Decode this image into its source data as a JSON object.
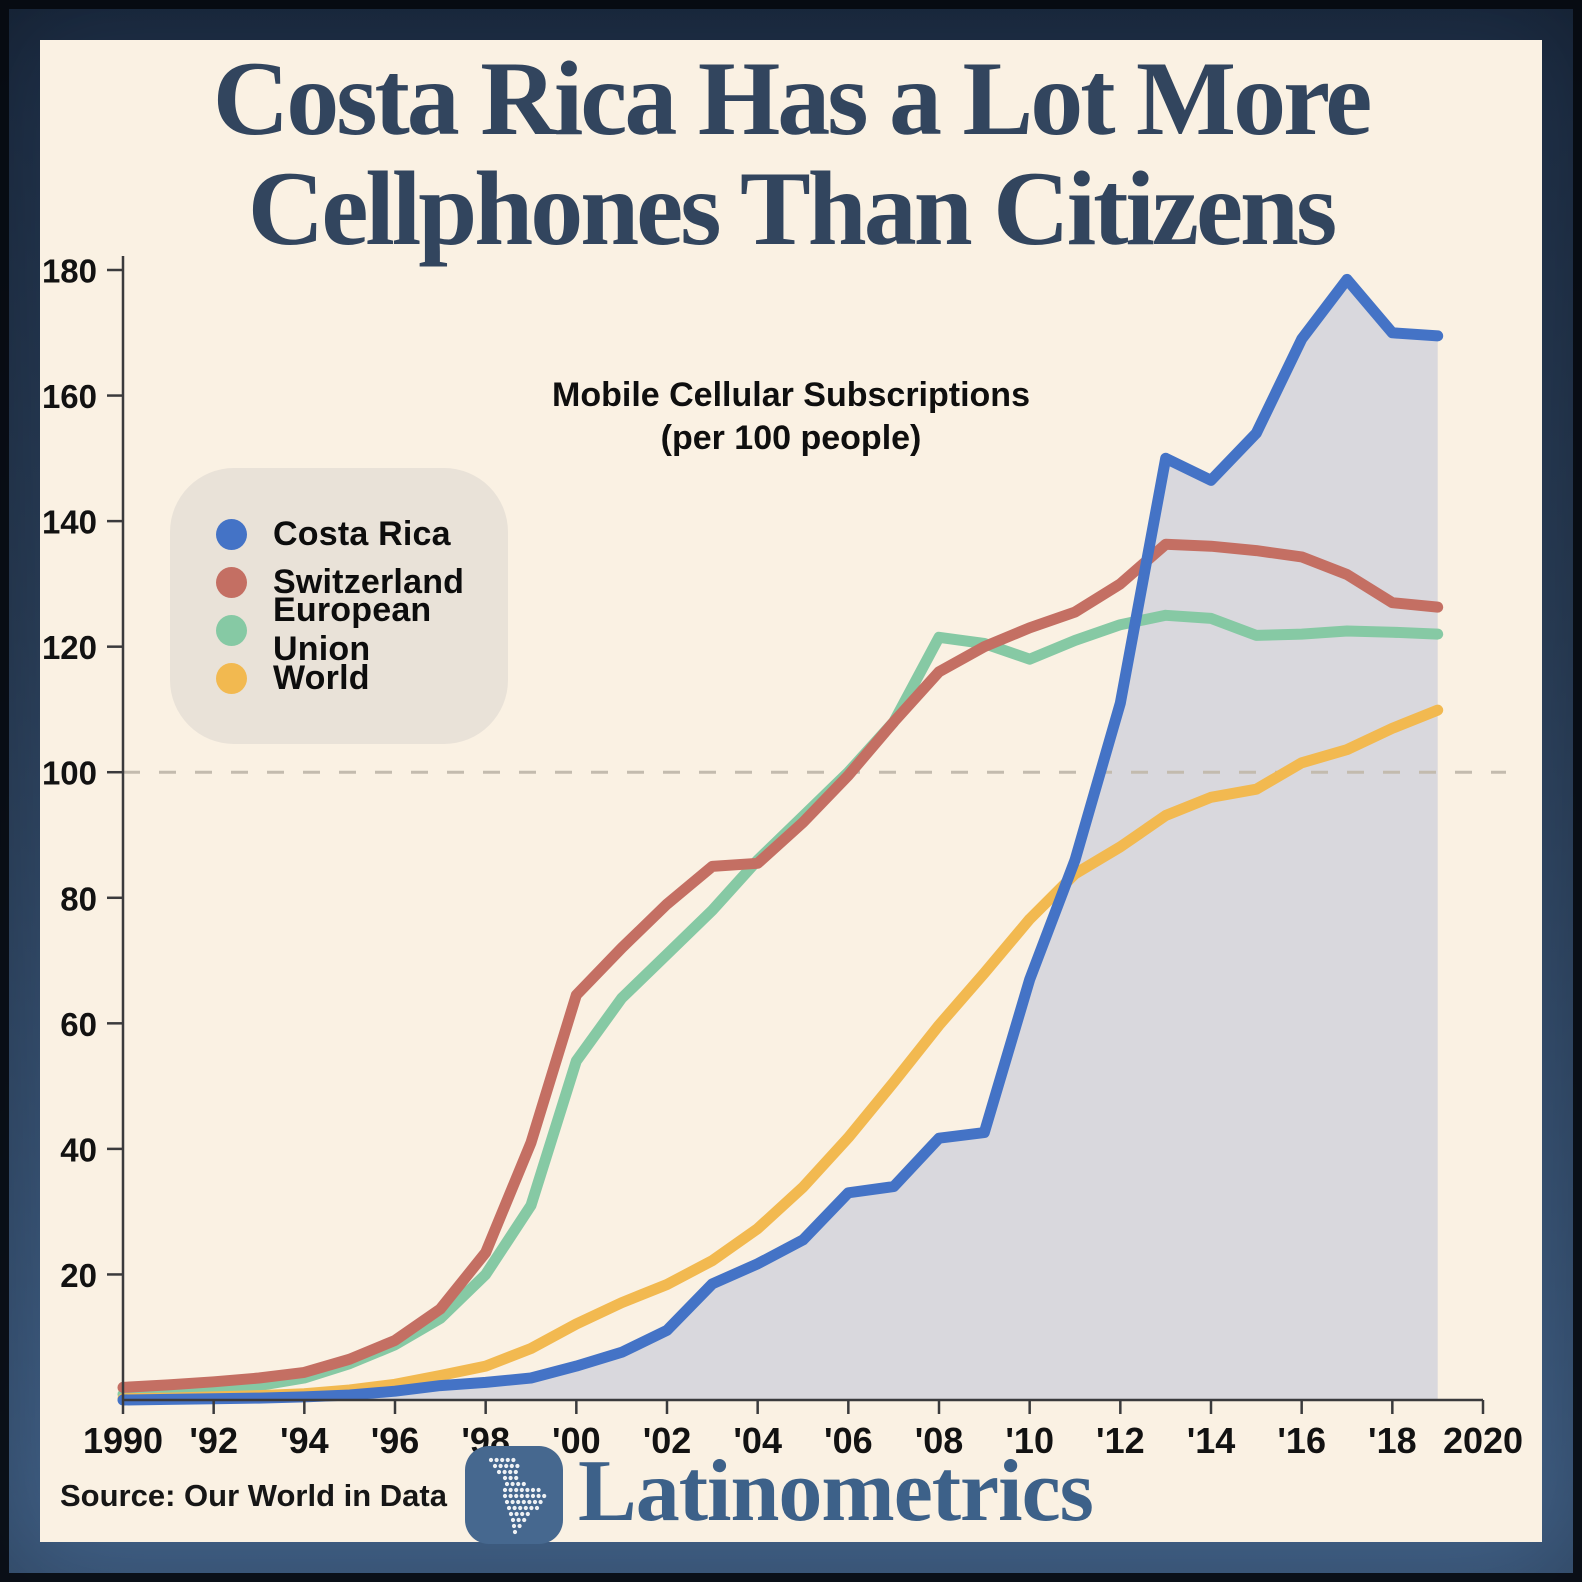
{
  "title": {
    "line1": "Costa Rica Has a Lot More",
    "line2": "Cellphones Than Citizens"
  },
  "subtitle": {
    "line1": "Mobile Cellular Subscriptions",
    "line2": "(per 100 people)"
  },
  "legend": {
    "items": [
      {
        "label": "Costa Rica",
        "color": "#4473c6"
      },
      {
        "label": "Switzerland",
        "color": "#c46f63"
      },
      {
        "label": "European Union",
        "color": "#86c9a4"
      },
      {
        "label": "World",
        "color": "#f2b950"
      }
    ]
  },
  "footer": {
    "source": "Source: Our World in Data",
    "brand": "Latinometrics"
  },
  "colors": {
    "panel_background": "#faf1e3",
    "frame_top": "#1d2e46",
    "frame_bottom": "#44658d",
    "title_text": "#32455e",
    "area_fill": "#d9d8dd",
    "axis": "#3a3a3c",
    "tick_text": "#121212",
    "reference_dash": "#c3bbae",
    "legend_background": "#e9e2d8",
    "logo_background": "#46688f",
    "brand_text": "#3d6189"
  },
  "chart_data": {
    "type": "line",
    "title": "Mobile Cellular Subscriptions (per 100 people)",
    "xlabel": "",
    "ylabel": "",
    "xlim": [
      1990,
      2020
    ],
    "ylim": [
      0,
      180
    ],
    "grid": "off",
    "legend_position": "upper-left",
    "reference_line_y": 100,
    "area_under_series": "Costa Rica",
    "x_years": [
      1990,
      1991,
      1992,
      1993,
      1994,
      1995,
      1996,
      1997,
      1998,
      1999,
      2000,
      2001,
      2002,
      2003,
      2004,
      2005,
      2006,
      2007,
      2008,
      2009,
      2010,
      2011,
      2012,
      2013,
      2014,
      2015,
      2016,
      2017,
      2018,
      2019
    ],
    "series": [
      {
        "name": "Costa Rica",
        "color": "#4473c6",
        "values": [
          0.0,
          0.1,
          0.2,
          0.3,
          0.5,
          0.8,
          1.4,
          2.3,
          2.8,
          3.5,
          5.4,
          7.6,
          11.1,
          18.5,
          21.7,
          25.5,
          33.0,
          34.0,
          41.7,
          42.6,
          67.0,
          86.0,
          111.0,
          150.0,
          146.5,
          154.0,
          169.0,
          178.5,
          170.0,
          169.5
        ]
      },
      {
        "name": "Switzerland",
        "color": "#c46f63",
        "values": [
          2.0,
          2.4,
          2.9,
          3.5,
          4.4,
          6.5,
          9.5,
          14.5,
          23.5,
          41.0,
          64.5,
          72.0,
          79.0,
          85.0,
          85.5,
          92.0,
          99.5,
          108.0,
          116.0,
          120.0,
          123.0,
          125.5,
          130.0,
          136.3,
          136.0,
          135.3,
          134.3,
          131.5,
          127.0,
          126.3
        ]
      },
      {
        "name": "European Union",
        "color": "#86c9a4",
        "values": [
          0.9,
          1.2,
          1.6,
          2.3,
          3.5,
          5.8,
          8.8,
          13.0,
          20.0,
          31.0,
          54.0,
          64.0,
          71.0,
          78.0,
          86.0,
          93.0,
          100.0,
          108.0,
          121.5,
          120.5,
          118.0,
          121.0,
          123.5,
          125.0,
          124.5,
          121.8,
          122.0,
          122.5,
          122.3,
          122.0
        ]
      },
      {
        "name": "World",
        "color": "#f2b950",
        "values": [
          0.2,
          0.3,
          0.5,
          0.7,
          1.0,
          1.6,
          2.5,
          3.9,
          5.4,
          8.2,
          12.1,
          15.5,
          18.4,
          22.2,
          27.3,
          33.9,
          41.8,
          50.6,
          59.7,
          68.0,
          76.6,
          83.8,
          88.1,
          93.1,
          96.0,
          97.3,
          101.5,
          103.6,
          107.0,
          109.9
        ]
      }
    ],
    "y_ticks": [
      20,
      40,
      60,
      80,
      100,
      120,
      140,
      160,
      180
    ],
    "x_ticks": [
      {
        "year": 1990,
        "label": "1990"
      },
      {
        "year": 1992,
        "label": "'92"
      },
      {
        "year": 1994,
        "label": "'94"
      },
      {
        "year": 1996,
        "label": "'96"
      },
      {
        "year": 1998,
        "label": "'98"
      },
      {
        "year": 2000,
        "label": "'00"
      },
      {
        "year": 2002,
        "label": "'02"
      },
      {
        "year": 2004,
        "label": "'04"
      },
      {
        "year": 2006,
        "label": "'06"
      },
      {
        "year": 2008,
        "label": "'08"
      },
      {
        "year": 2010,
        "label": "'10"
      },
      {
        "year": 2012,
        "label": "'12"
      },
      {
        "year": 2014,
        "label": "'14"
      },
      {
        "year": 2016,
        "label": "'16"
      },
      {
        "year": 2018,
        "label": "'18"
      },
      {
        "year": 2020,
        "label": "2020"
      }
    ]
  }
}
